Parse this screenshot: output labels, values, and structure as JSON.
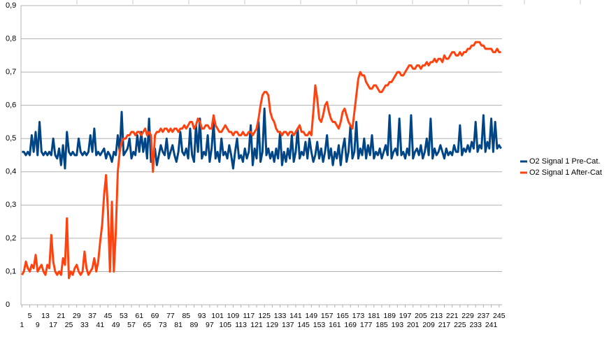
{
  "chart_data": {
    "type": "line",
    "categories": [
      1,
      null,
      null,
      null,
      5,
      null,
      null,
      null,
      9,
      null,
      null,
      null,
      13,
      null,
      null,
      null,
      17,
      null,
      null,
      null,
      21,
      null,
      null,
      null,
      25,
      null,
      null,
      null,
      29,
      null,
      null,
      null,
      33,
      null,
      null,
      null,
      37,
      null,
      null,
      null,
      41,
      null,
      null,
      null,
      45,
      null,
      null,
      null,
      49,
      null,
      null,
      null,
      53,
      null,
      null,
      null,
      57,
      null,
      null,
      null,
      61,
      null,
      null,
      null,
      65,
      null,
      null,
      null,
      69,
      null,
      null,
      null,
      73,
      null,
      null,
      null,
      77,
      null,
      null,
      null,
      81,
      null,
      null,
      null,
      85,
      null,
      null,
      null,
      89,
      null,
      null,
      null,
      93,
      null,
      null,
      null,
      97,
      null,
      null,
      null,
      101,
      null,
      null,
      null,
      105,
      null,
      null,
      null,
      109,
      null,
      null,
      null,
      113,
      null,
      null,
      null,
      117,
      null,
      null,
      null,
      121,
      null,
      null,
      null,
      125,
      null,
      null,
      null,
      129,
      null,
      null,
      null,
      133,
      null,
      null,
      null,
      137,
      null,
      null,
      null,
      141,
      null,
      null,
      null,
      145,
      null,
      null,
      null,
      149,
      null,
      null,
      null,
      153,
      null,
      null,
      null,
      157,
      null,
      null,
      null,
      161,
      null,
      null,
      null,
      165,
      null,
      null,
      null,
      169,
      null,
      null,
      null,
      173,
      null,
      null,
      null,
      177,
      null,
      null,
      null,
      181,
      null,
      null,
      null,
      185,
      null,
      null,
      null,
      189,
      null,
      null,
      null,
      193,
      null,
      null,
      null,
      197,
      null,
      null,
      null,
      201,
      null,
      null,
      null,
      205,
      null,
      null,
      null,
      209,
      null,
      null,
      null,
      213,
      null,
      null,
      null,
      217,
      null,
      null,
      null,
      221,
      null,
      null,
      null,
      225,
      null,
      null,
      null,
      229,
      null,
      null,
      null,
      233,
      null,
      null,
      null,
      237,
      null,
      null,
      null,
      241,
      null,
      null,
      null,
      245,
      null
    ],
    "series": [
      {
        "name": "O2 Signal 1 Pre-Cat.",
        "color": "#004586",
        "values": [
          0.46,
          0.46,
          0.45,
          0.46,
          0.45,
          0.51,
          0.46,
          0.52,
          0.45,
          0.55,
          0.46,
          0.45,
          0.46,
          0.45,
          0.46,
          0.45,
          0.5,
          0.45,
          0.44,
          0.47,
          0.42,
          0.48,
          0.41,
          0.52,
          0.46,
          0.45,
          0.46,
          0.45,
          0.45,
          0.5,
          0.46,
          0.45,
          0.46,
          0.45,
          0.46,
          0.51,
          0.46,
          0.53,
          0.45,
          0.46,
          0.45,
          0.46,
          0.47,
          0.44,
          0.46,
          0.45,
          0.43,
          0.46,
          0.45,
          0.51,
          0.46,
          0.58,
          0.45,
          0.46,
          0.47,
          0.5,
          0.44,
          0.46,
          0.45,
          0.51,
          0.46,
          0.52,
          0.46,
          0.5,
          0.44,
          0.56,
          0.43,
          0.45,
          0.47,
          0.42,
          0.45,
          0.48,
          0.46,
          0.45,
          0.5,
          0.44,
          0.46,
          0.48,
          0.45,
          0.43,
          0.46,
          0.52,
          0.46,
          0.45,
          0.47,
          0.44,
          0.53,
          0.45,
          0.43,
          0.54,
          0.46,
          0.56,
          0.44,
          0.46,
          0.45,
          0.51,
          0.43,
          0.47,
          0.55,
          0.44,
          0.46,
          0.43,
          0.5,
          0.45,
          0.46,
          0.44,
          0.48,
          0.45,
          0.41,
          0.46,
          0.5,
          0.44,
          0.45,
          0.43,
          0.47,
          0.44,
          0.46,
          0.54,
          0.42,
          0.47,
          0.44,
          0.55,
          0.43,
          0.46,
          0.59,
          0.45,
          0.47,
          0.44,
          0.46,
          0.43,
          0.47,
          0.44,
          0.52,
          0.42,
          0.46,
          0.43,
          0.47,
          0.44,
          0.51,
          0.43,
          0.46,
          0.53,
          0.44,
          0.46,
          0.45,
          0.49,
          0.44,
          0.5,
          0.46,
          0.43,
          0.45,
          0.49,
          0.44,
          0.47,
          0.43,
          0.46,
          0.51,
          0.44,
          0.47,
          0.42,
          0.46,
          0.44,
          0.48,
          0.42,
          0.47,
          0.5,
          0.43,
          0.46,
          0.54,
          0.44,
          0.46,
          0.55,
          0.44,
          0.47,
          0.45,
          0.5,
          0.44,
          0.48,
          0.45,
          0.51,
          0.44,
          0.46,
          0.45,
          0.47,
          0.44,
          0.46,
          0.48,
          0.45,
          0.57,
          0.44,
          0.46,
          0.47,
          0.45,
          0.56,
          0.45,
          0.46,
          0.44,
          0.47,
          0.45,
          0.57,
          0.44,
          0.46,
          0.47,
          0.45,
          0.48,
          0.44,
          0.46,
          0.5,
          0.45,
          0.56,
          0.44,
          0.47,
          0.45,
          0.46,
          0.48,
          0.46,
          0.44,
          0.47,
          0.45,
          0.46,
          0.45,
          0.48,
          0.46,
          0.46,
          0.54,
          0.45,
          0.47,
          0.46,
          0.48,
          0.46,
          0.49,
          0.47,
          0.55,
          0.46,
          0.48,
          0.47,
          0.57,
          0.46,
          0.49,
          0.47,
          0.56,
          0.46,
          0.55,
          0.47,
          0.48,
          0.47
        ]
      },
      {
        "name": "O2 Signal 1 After-Cat",
        "color": "#ff420e",
        "values": [
          0.09,
          0.1,
          0.13,
          0.11,
          0.1,
          0.12,
          0.11,
          0.15,
          0.1,
          0.11,
          0.12,
          0.1,
          0.09,
          0.12,
          0.11,
          0.21,
          0.13,
          0.1,
          0.09,
          0.1,
          0.09,
          0.14,
          0.12,
          0.26,
          0.08,
          0.1,
          0.09,
          0.11,
          0.12,
          0.1,
          0.09,
          0.1,
          0.16,
          0.11,
          0.09,
          0.1,
          0.11,
          0.14,
          0.1,
          0.13,
          0.19,
          0.24,
          0.33,
          0.39,
          0.28,
          0.1,
          0.31,
          0.1,
          0.22,
          0.4,
          0.46,
          0.49,
          0.5,
          0.5,
          0.51,
          0.51,
          0.52,
          0.52,
          0.51,
          0.52,
          0.52,
          0.51,
          0.52,
          0.53,
          0.51,
          0.52,
          0.51,
          0.4,
          0.51,
          0.52,
          0.52,
          0.53,
          0.52,
          0.53,
          0.53,
          0.52,
          0.53,
          0.52,
          0.53,
          0.53,
          0.52,
          0.53,
          0.53,
          0.54,
          0.53,
          0.54,
          0.55,
          0.55,
          0.53,
          0.54,
          0.56,
          0.55,
          0.53,
          0.53,
          0.54,
          0.54,
          0.53,
          0.53,
          0.57,
          0.54,
          0.53,
          0.52,
          0.52,
          0.53,
          0.54,
          0.53,
          0.52,
          0.52,
          0.51,
          0.52,
          0.52,
          0.51,
          0.51,
          0.52,
          0.51,
          0.51,
          0.52,
          0.52,
          0.51,
          0.52,
          0.53,
          0.56,
          0.6,
          0.63,
          0.64,
          0.64,
          0.63,
          0.58,
          0.56,
          0.55,
          0.53,
          0.52,
          0.52,
          0.51,
          0.52,
          0.52,
          0.51,
          0.52,
          0.52,
          0.51,
          0.52,
          0.53,
          0.54,
          0.52,
          0.52,
          0.51,
          0.51,
          0.52,
          0.51,
          0.58,
          0.66,
          0.62,
          0.56,
          0.55,
          0.57,
          0.6,
          0.61,
          0.58,
          0.56,
          0.55,
          0.55,
          0.54,
          0.53,
          0.55,
          0.58,
          0.59,
          0.57,
          0.55,
          0.54,
          0.53,
          0.58,
          0.63,
          0.68,
          0.7,
          0.69,
          0.69,
          0.67,
          0.66,
          0.65,
          0.65,
          0.66,
          0.66,
          0.65,
          0.64,
          0.64,
          0.65,
          0.66,
          0.66,
          0.67,
          0.67,
          0.68,
          0.69,
          0.7,
          0.7,
          0.69,
          0.69,
          0.7,
          0.71,
          0.72,
          0.72,
          0.71,
          0.71,
          0.72,
          0.72,
          0.71,
          0.72,
          0.72,
          0.73,
          0.72,
          0.73,
          0.73,
          0.74,
          0.73,
          0.74,
          0.74,
          0.73,
          0.75,
          0.74,
          0.74,
          0.75,
          0.76,
          0.76,
          0.75,
          0.75,
          0.76,
          0.75,
          0.76,
          0.76,
          0.77,
          0.77,
          0.78,
          0.78,
          0.79,
          0.79,
          0.79,
          0.78,
          0.78,
          0.77,
          0.77,
          0.77,
          0.77,
          0.76,
          0.76,
          0.77,
          0.76,
          0.76
        ]
      }
    ],
    "ylim": [
      0,
      0.9
    ],
    "yticks": [
      0,
      {
        "value": 0.1,
        "label": "0,1"
      },
      {
        "value": 0.2,
        "label": "0,2"
      },
      {
        "value": 0.3,
        "label": "0,3"
      },
      {
        "value": 0.4,
        "label": "0,4"
      },
      {
        "value": 0.5,
        "label": "0,5"
      },
      {
        "value": 0.6,
        "label": "0,6"
      },
      {
        "value": 0.7,
        "label": "0,7"
      },
      {
        "value": 0.8,
        "label": "0,8"
      },
      {
        "value": 0.9,
        "label": "0,9"
      }
    ],
    "grid": true,
    "legend": "right"
  }
}
